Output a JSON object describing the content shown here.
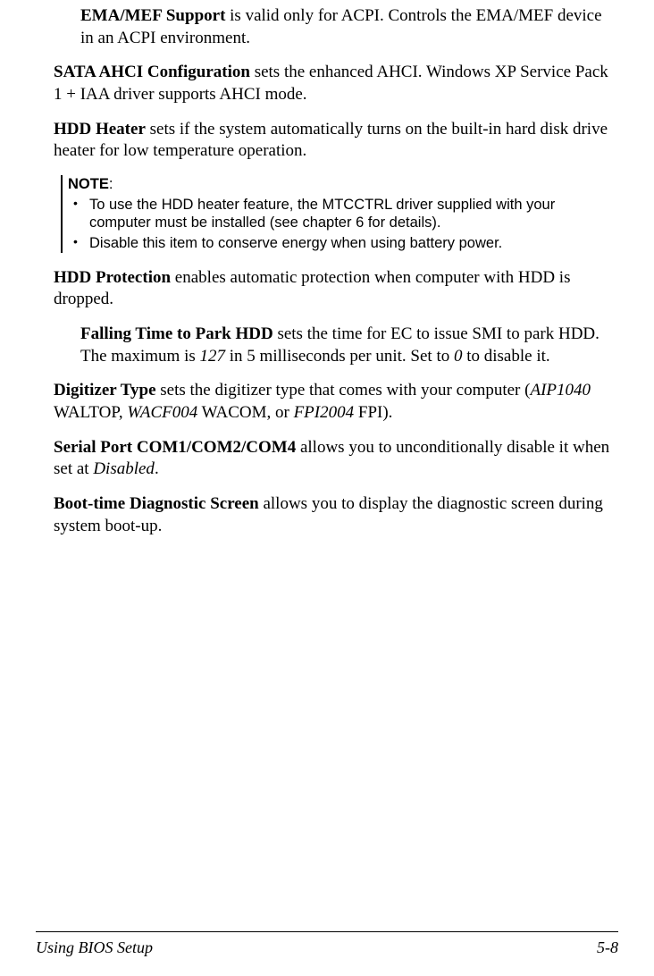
{
  "paragraphs": {
    "ema": {
      "term": "EMA/MEF Support",
      "text": "  is valid only for ACPI. Controls the EMA/MEF device in an ACPI environment."
    },
    "sata": {
      "term": "SATA AHCI Configuration",
      "text": "  sets the enhanced AHCI. Windows XP Service Pack 1 + IAA driver supports AHCI mode."
    },
    "hddheater": {
      "term": "HDD Heater",
      "text": "  sets if the system automatically turns on the built-in hard disk drive heater for low temperature operation."
    },
    "hddprot": {
      "term": "HDD Protection",
      "text": "  enables automatic protection when computer with HDD is dropped."
    },
    "falling": {
      "term": "Falling Time to Park HDD",
      "pre": "  sets the time for EC to issue SMI to park HDD. The maximum is ",
      "v1": "127",
      "mid": " in 5 milliseconds per unit. Set to ",
      "v2": "0",
      "post": " to disable it."
    },
    "digitizer": {
      "term": "Digitizer Type",
      "pre": "  sets the digitizer type that comes with your computer (",
      "m1": "AIP1040",
      "t1": " WALTOP, ",
      "m2": "WACF004",
      "t2": " WACOM, or ",
      "m3": "FPI2004",
      "t3": " FPI)."
    },
    "serial": {
      "term": "Serial Port COM1/COM2/COM4",
      "pre": "  allows you to unconditionally disable it when set at ",
      "v1": "Disabled",
      "post": "."
    },
    "boot": {
      "term": "Boot-time Diagnostic Screen",
      "text": "  allows you to display the diagnostic screen during system boot-up."
    }
  },
  "note": {
    "label": "NOTE",
    "colon": ":",
    "items": [
      "To use the HDD heater feature, the MTCCTRL driver supplied with your computer must be installed (see chapter 6 for details).",
      "Disable this item to conserve energy when using battery power."
    ]
  },
  "footer": {
    "left": "Using BIOS Setup",
    "right": "5-8"
  }
}
